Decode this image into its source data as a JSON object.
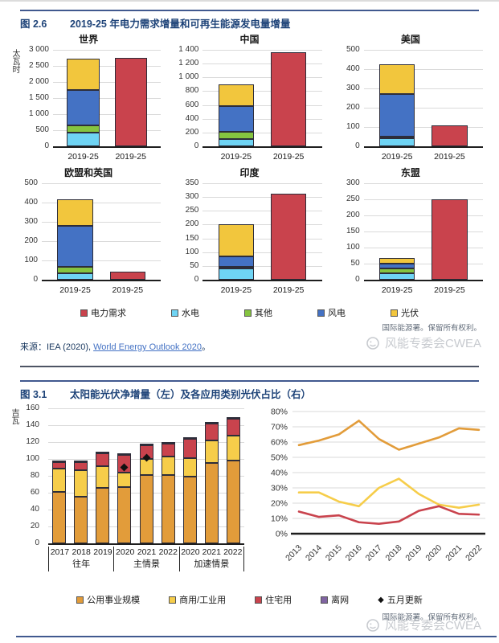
{
  "colors": {
    "电力需求": "#c9434d",
    "水电": "#6fd4f4",
    "其他": "#85c440",
    "风电": "#4472c4",
    "光伏": "#f2c63d",
    "公用事业规模": "#e29c3a",
    "商用/工业用": "#f6cd4a",
    "住宅用": "#c9434d",
    "离网": "#8064a2",
    "五月更新": "#111111",
    "accent_navy": "#1f4479",
    "rule_blue": "#41598f",
    "link_blue": "#4472c4"
  },
  "fig26": {
    "label": "图 2.6",
    "title": "2019-25 年电力需求增量和可再生能源发电量增量",
    "unit": "太瓦时",
    "legend": [
      "电力需求",
      "水电",
      "其他",
      "风电",
      "光伏"
    ],
    "source": {
      "prefix": "来源：IEA (2020), ",
      "link": "World Energy Outlook 2020",
      "suffix": "。"
    },
    "rights": "国际能源署。保留所有权利。",
    "watermark": "风能专委会CWEA"
  },
  "fig31": {
    "label": "图 3.1",
    "title": "太阳能光伏净增量（左）及各应用类别光伏占比（右）",
    "unit": "吉瓦",
    "legend": [
      "公用事业规模",
      "商用/工业用",
      "住宅用",
      "离网",
      "五月更新"
    ],
    "rights": "国际能源署。保留所有权利。",
    "watermark": "风能专委会CWEA"
  },
  "chart_data": [
    {
      "id": "world",
      "type": "bar",
      "title": "世界",
      "unit": "太瓦时",
      "ylabel": "太瓦时",
      "ylim": [
        0,
        3000
      ],
      "ystep": 500,
      "categories": [
        "2019-25",
        "2019-25"
      ],
      "stacks": [
        [
          [
            "水电",
            420
          ],
          [
            "其他",
            230
          ],
          [
            "风电",
            1110
          ],
          [
            "光伏",
            960
          ]
        ],
        [
          [
            "电力需求",
            2760
          ]
        ]
      ]
    },
    {
      "id": "china",
      "type": "bar",
      "title": "中国",
      "ylim": [
        0,
        1400
      ],
      "ystep": 200,
      "categories": [
        "2019-25",
        "2019-25"
      ],
      "stacks": [
        [
          [
            "水电",
            110
          ],
          [
            "其他",
            105
          ],
          [
            "风电",
            370
          ],
          [
            "光伏",
            315
          ]
        ],
        [
          [
            "电力需求",
            1370
          ]
        ]
      ]
    },
    {
      "id": "usa",
      "type": "bar",
      "title": "美国",
      "ylim": [
        0,
        500
      ],
      "ystep": 100,
      "categories": [
        "2019-25",
        "2019-25"
      ],
      "stacks": [
        [
          [
            "水电",
            40
          ],
          [
            "其他",
            10
          ],
          [
            "风电",
            220
          ],
          [
            "光伏",
            155
          ]
        ],
        [
          [
            "电力需求",
            107
          ]
        ]
      ]
    },
    {
      "id": "eu_uk",
      "type": "bar",
      "title": "欧盟和英国",
      "ylim": [
        0,
        500
      ],
      "ystep": 100,
      "categories": [
        "2019-25",
        "2019-25"
      ],
      "stacks": [
        [
          [
            "水电",
            35
          ],
          [
            "其他",
            33
          ],
          [
            "风电",
            212
          ],
          [
            "光伏",
            135
          ]
        ],
        [
          [
            "电力需求",
            40
          ]
        ]
      ]
    },
    {
      "id": "india",
      "type": "bar",
      "title": "印度",
      "ylim": [
        0,
        350
      ],
      "ystep": 50,
      "categories": [
        "2019-25",
        "2019-25"
      ],
      "stacks": [
        [
          [
            "水电",
            40
          ],
          [
            "其他",
            5
          ],
          [
            "风电",
            40
          ],
          [
            "光伏",
            115
          ]
        ],
        [
          [
            "电力需求",
            312
          ]
        ]
      ]
    },
    {
      "id": "asean",
      "type": "bar",
      "title": "东盟",
      "ylim": [
        0,
        300
      ],
      "ystep": 50,
      "categories": [
        "2019-25",
        "2019-25"
      ],
      "stacks": [
        [
          [
            "水电",
            20
          ],
          [
            "其他",
            15
          ],
          [
            "风电",
            15
          ],
          [
            "光伏",
            17
          ]
        ],
        [
          [
            "电力需求",
            250
          ]
        ]
      ]
    },
    {
      "id": "pv_net_additions",
      "type": "bar",
      "title": "",
      "ylabel": "吉瓦",
      "ylim": [
        0,
        160
      ],
      "ystep": 20,
      "groups": [
        {
          "label": "往年",
          "years": [
            "2017",
            "2018",
            "2019"
          ]
        },
        {
          "label": "主情景",
          "years": [
            "2020",
            "2021",
            "2022"
          ]
        },
        {
          "label": "加速情景",
          "years": [
            "2020",
            "2021",
            "2022"
          ]
        }
      ],
      "series": [
        {
          "name": "公用事业规模",
          "values": [
            61,
            55,
            66,
            67,
            81,
            81,
            79,
            95,
            98
          ]
        },
        {
          "name": "商用/工业用",
          "values": [
            28,
            32,
            25,
            17,
            19,
            22,
            22,
            27,
            30
          ]
        },
        {
          "name": "住宅用",
          "values": [
            7,
            9,
            16,
            21,
            16,
            15,
            23,
            20,
            20
          ]
        },
        {
          "name": "离网",
          "values": [
            1,
            1,
            1,
            1,
            1,
            1,
            1,
            1,
            2
          ]
        }
      ],
      "markers": {
        "name": "五月更新",
        "points": [
          [
            3,
            90
          ],
          [
            4,
            101
          ]
        ]
      }
    },
    {
      "id": "pv_application_share",
      "type": "line",
      "ylim": [
        0,
        80
      ],
      "ystep": 10,
      "yformat": "percent",
      "x": [
        "2013",
        "2014",
        "2015",
        "2016",
        "2017",
        "2018",
        "2019",
        "2020",
        "2021",
        "2022"
      ],
      "series": [
        {
          "name": "公用事业规模",
          "values": [
            58,
            61,
            65,
            74,
            62,
            55,
            59,
            63,
            69,
            68
          ]
        },
        {
          "name": "商用/工业用",
          "values": [
            27,
            27,
            21,
            18,
            30,
            36,
            26,
            19,
            17,
            19
          ]
        },
        {
          "name": "住宅用",
          "values": [
            14.5,
            11,
            12,
            7.5,
            6.5,
            8,
            15,
            18,
            13,
            12.5
          ]
        }
      ]
    }
  ]
}
